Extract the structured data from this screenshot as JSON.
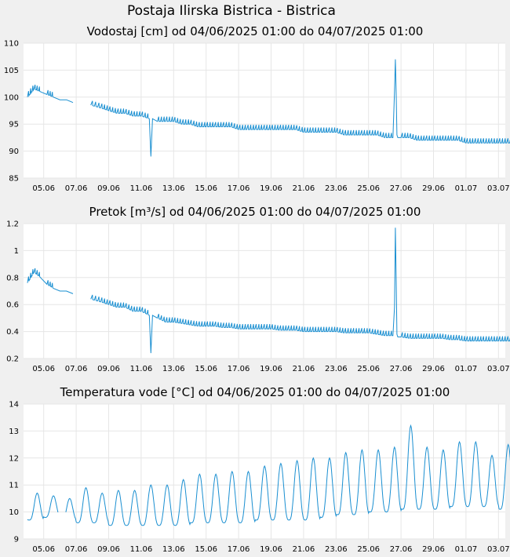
{
  "station_title": "Postaja Ilirska Bistrica - Bistrica",
  "colors": {
    "series": "#1a8fd1",
    "plot_bg": "#ffffff",
    "page_bg": "#f0f0f0",
    "grid": "#e6e6e6"
  },
  "chart_data": [
    {
      "type": "line",
      "title": "Vodostaj [cm] od 04/06/2025 01:00 do 04/07/2025 01:00",
      "ylim": [
        85,
        110
      ],
      "yticks": [
        "85",
        "90",
        "95",
        "100",
        "105",
        "110"
      ],
      "xticks": [
        "05.06",
        "07.06",
        "09.06",
        "11.06",
        "13.06",
        "15.06",
        "17.06",
        "19.06",
        "21.06",
        "23.06",
        "25.06",
        "27.06",
        "29.06",
        "01.07",
        "03.07"
      ],
      "x_range_days": [
        0,
        30.4
      ],
      "grid": true,
      "series": [
        {
          "x": [
            0,
            0.4,
            0.8,
            1.2,
            1.6,
            2.0,
            2.4,
            2.8,
            3.4,
            3.9,
            4.5,
            5.0,
            5.5,
            6.0,
            6.5,
            7.0,
            7.5,
            7.6,
            7.7,
            8.0,
            8.5,
            9.0,
            9.5,
            10.0,
            10.5,
            11.0,
            11.5,
            12.0,
            12.5,
            13.0,
            13.5,
            14.0,
            14.5,
            15.0,
            15.5,
            16.0,
            16.5,
            17.0,
            17.5,
            18.0,
            18.5,
            19.0,
            19.5,
            20.0,
            20.5,
            21.0,
            21.5,
            22.0,
            22.5,
            22.6,
            22.65,
            22.7,
            22.75,
            22.8,
            23.0,
            23.5,
            24.0,
            24.5,
            25.0,
            25.5,
            26.0,
            26.5,
            27.0,
            27.5,
            28.0,
            28.5,
            29.0,
            29.5,
            30.0,
            30.4
          ],
          "y": [
            100,
            101.5,
            101,
            100.5,
            100,
            99.5,
            99.5,
            99,
            null,
            98.5,
            98,
            97.5,
            97,
            97,
            96.5,
            96.5,
            96,
            89,
            96,
            95.5,
            95.5,
            95.5,
            95,
            95,
            94.5,
            94.5,
            94.5,
            94.5,
            94.5,
            94,
            94,
            94,
            94,
            94,
            94,
            94,
            94,
            93.5,
            93.5,
            93.5,
            93.5,
            93.5,
            93,
            93,
            93,
            93,
            93,
            92.5,
            92.5,
            101,
            107,
            101,
            93,
            92.5,
            92.5,
            92.5,
            92,
            92,
            92,
            92,
            92,
            92,
            91.5,
            91.5,
            91.5,
            91.5,
            91.5,
            91.5,
            91.5,
            91.5
          ]
        }
      ]
    },
    {
      "type": "line",
      "title": "Pretok [m³/s] od 04/06/2025 01:00 do 04/07/2025 01:00",
      "ylim": [
        0.2,
        1.2
      ],
      "yticks": [
        "0.2",
        "0.4",
        "0.6",
        "0.8",
        "1",
        "1.2"
      ],
      "xticks": [
        "05.06",
        "07.06",
        "09.06",
        "11.06",
        "13.06",
        "15.06",
        "17.06",
        "19.06",
        "21.06",
        "23.06",
        "25.06",
        "27.06",
        "29.06",
        "01.07",
        "03.07"
      ],
      "x_range_days": [
        0,
        30.4
      ],
      "grid": true,
      "series": [
        {
          "x": [
            0,
            0.4,
            0.8,
            1.2,
            1.6,
            2.0,
            2.4,
            2.8,
            3.4,
            3.9,
            4.5,
            5.0,
            5.5,
            6.0,
            6.5,
            7.0,
            7.5,
            7.6,
            7.7,
            8.0,
            8.5,
            9.0,
            9.5,
            10.0,
            10.5,
            11.0,
            11.5,
            12.0,
            12.5,
            13.0,
            13.5,
            14.0,
            14.5,
            15.0,
            15.5,
            16.0,
            16.5,
            17.0,
            17.5,
            18.0,
            18.5,
            19.0,
            19.5,
            20.0,
            20.5,
            21.0,
            21.5,
            22.0,
            22.5,
            22.6,
            22.65,
            22.7,
            22.75,
            22.8,
            23.0,
            23.5,
            24.0,
            24.5,
            25.0,
            25.5,
            26.0,
            26.5,
            27.0,
            27.5,
            28.0,
            28.5,
            29.0,
            29.5,
            30.0,
            30.4
          ],
          "y": [
            0.76,
            0.84,
            0.8,
            0.75,
            0.72,
            0.7,
            0.7,
            0.68,
            null,
            0.64,
            0.62,
            0.6,
            0.58,
            0.58,
            0.55,
            0.55,
            0.52,
            0.24,
            0.52,
            0.5,
            0.47,
            0.47,
            0.46,
            0.45,
            0.44,
            0.44,
            0.44,
            0.43,
            0.43,
            0.42,
            0.42,
            0.42,
            0.42,
            0.42,
            0.41,
            0.41,
            0.41,
            0.4,
            0.4,
            0.4,
            0.4,
            0.4,
            0.39,
            0.39,
            0.39,
            0.39,
            0.38,
            0.37,
            0.37,
            0.58,
            1.17,
            0.8,
            0.38,
            0.36,
            0.36,
            0.35,
            0.35,
            0.35,
            0.35,
            0.35,
            0.34,
            0.34,
            0.33,
            0.33,
            0.33,
            0.33,
            0.33,
            0.33,
            0.33,
            0.33
          ]
        }
      ]
    },
    {
      "type": "line",
      "title": "Temperatura vode [°C] od 04/06/2025 01:00 do 04/07/2025 01:00",
      "ylim": [
        9,
        14
      ],
      "yticks": [
        "9",
        "10",
        "11",
        "12",
        "13",
        "14"
      ],
      "xticks": [
        "05.06",
        "07.06",
        "09.06",
        "11.06",
        "13.06",
        "15.06",
        "17.06",
        "19.06",
        "21.06",
        "23.06",
        "25.06",
        "27.06",
        "29.06",
        "01.07",
        "03.07"
      ],
      "x_range_days": [
        0,
        30.4
      ],
      "grid": true,
      "daily_cycle": {
        "peak_hour_fraction": 0.7,
        "minima": [
          9.7,
          9.8,
          9.7,
          9.6,
          9.6,
          9.5,
          9.5,
          9.5,
          9.5,
          9.5,
          9.6,
          9.6,
          9.6,
          9.6,
          9.7,
          9.7,
          9.7,
          9.7,
          9.8,
          9.9,
          9.9,
          10.0,
          10.0,
          10.1,
          10.1,
          10.1,
          10.2,
          10.2,
          10.2,
          10.1,
          10.1
        ],
        "maxima": [
          10.7,
          10.6,
          10.5,
          10.9,
          10.7,
          10.8,
          10.8,
          11.0,
          11.0,
          11.2,
          11.4,
          11.4,
          11.5,
          11.5,
          11.7,
          11.8,
          11.9,
          12.0,
          12.0,
          12.2,
          12.3,
          12.3,
          12.4,
          13.2,
          12.4,
          12.3,
          12.6,
          12.6,
          12.1,
          12.5,
          12.4
        ]
      },
      "gap_days": [
        1.9,
        2.35
      ]
    }
  ]
}
